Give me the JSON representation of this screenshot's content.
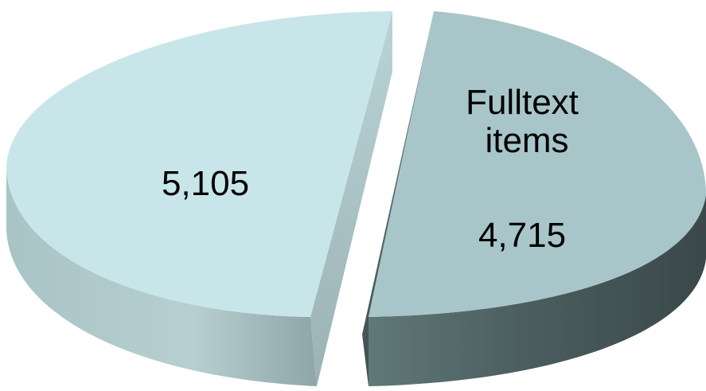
{
  "chart_data": {
    "type": "pie",
    "style": "3d-exploded",
    "slices": [
      {
        "label": "",
        "value": 5105,
        "value_label": "5,105",
        "color": "#c8e6ea",
        "side_color": "#9fb7b9"
      },
      {
        "label": "Fulltext items",
        "label_lines": [
          "Fulltext",
          "items"
        ],
        "value": 4715,
        "value_label": "4,715",
        "color": "#a8c6c9",
        "side_color": "#506060"
      }
    ]
  }
}
